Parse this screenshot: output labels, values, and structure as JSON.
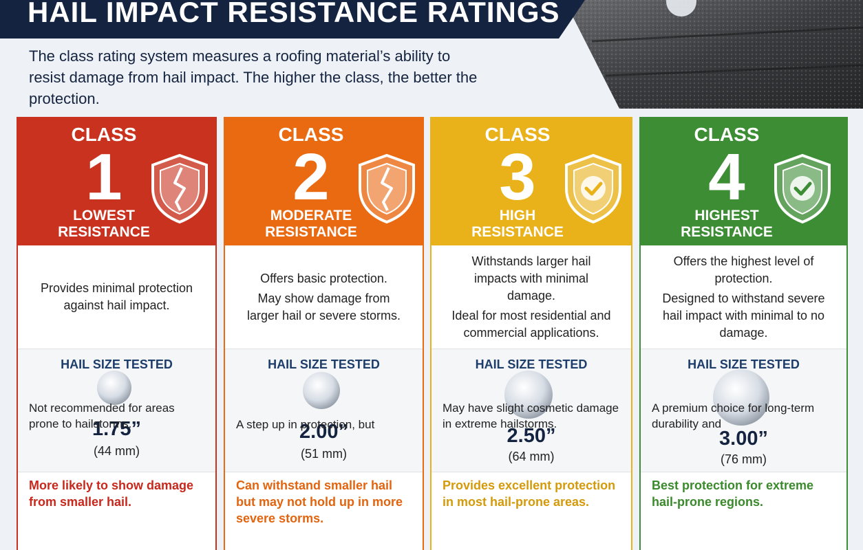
{
  "header": {
    "title": "HAIL IMPACT RESISTANCE RATINGS",
    "intro": "The class rating system measures a roofing material’s ability to resist damage from hail impact. The higher the class, the better the protection."
  },
  "cards": [
    {
      "class_label": "CLASS",
      "number": "1",
      "level": "LOWEST RESISTANCE",
      "description": [
        "Provides minimal protection against hail impact."
      ],
      "hail_label": "HAIL SIZE TESTED",
      "size": "1.75”",
      "size_mm": "(44 mm)",
      "highlight": "More likely to show damage from smaller hail.",
      "note": "Not recommended for areas prone to hailstorms."
    },
    {
      "class_label": "CLASS",
      "number": "2",
      "level": "MODERATE RESISTANCE",
      "description": [
        "Offers basic protection.",
        "May show damage from larger hail or severe storms."
      ],
      "hail_label": "HAIL SIZE TESTED",
      "size": "2.00”",
      "size_mm": "(51 mm)",
      "highlight": "Can withstand smaller hail but may not hold up in more severe storms.",
      "note": "A step up in protection, but"
    },
    {
      "class_label": "CLASS",
      "number": "3",
      "level": "HIGH RESISTANCE",
      "description": [
        "Withstands larger hail impacts with minimal damage.",
        "Ideal for most residential and commercial applications."
      ],
      "hail_label": "HAIL SIZE TESTED",
      "size": "2.50”",
      "size_mm": "(64 mm)",
      "highlight": "Provides excellent protection in most hail-prone areas.",
      "note": "May have slight cosmetic damage in extreme hailstorms."
    },
    {
      "class_label": "CLASS",
      "number": "4",
      "level": "HIGHEST RESISTANCE",
      "description": [
        "Offers the highest level of protection.",
        "Designed to withstand severe hail impact with minimal to no damage."
      ],
      "hail_label": "HAIL SIZE TESTED",
      "size": "3.00”",
      "size_mm": "(76 mm)",
      "highlight": "Best protection for extreme hail-prone regions.",
      "note": "A premium choice for long-term durability and"
    }
  ]
}
